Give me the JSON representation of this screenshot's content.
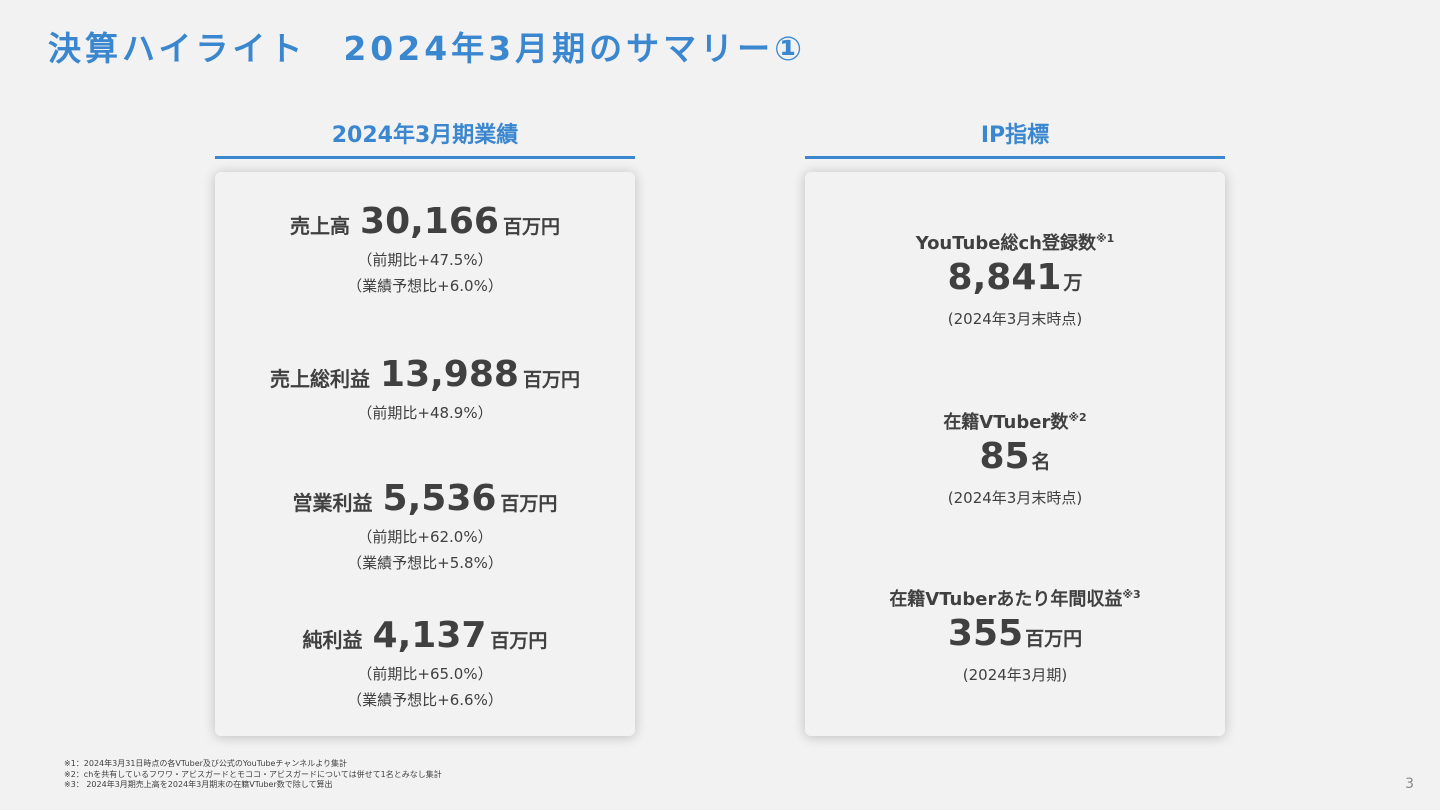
{
  "title": "決算ハイライト　2024年3月期のサマリー①",
  "colors": {
    "accent": "#3a87cf",
    "text": "#404040",
    "background": "#f2f2f2"
  },
  "left": {
    "header": "2024年3月期業績",
    "metrics": [
      {
        "label": "売上高",
        "value": "30,166",
        "unit": "百万円",
        "notes": [
          "（前期比+47.5%）",
          "（業績予想比+6.0%）"
        ]
      },
      {
        "label": "売上総利益",
        "value": "13,988",
        "unit": "百万円",
        "notes": [
          "（前期比+48.9%）"
        ]
      },
      {
        "label": "営業利益",
        "value": "5,536",
        "unit": "百万円",
        "notes": [
          "（前期比+62.0%）",
          "（業績予想比+5.8%）"
        ]
      },
      {
        "label": "純利益",
        "value": "4,137",
        "unit": "百万円",
        "notes": [
          "（前期比+65.0%）",
          "（業績予想比+6.6%）"
        ]
      }
    ]
  },
  "right": {
    "header": "IP指標",
    "metrics": [
      {
        "label": "YouTube総ch登録数",
        "ref": "※1",
        "value": "8,841",
        "unit": "万",
        "note": "(2024年3月末時点)"
      },
      {
        "label": "在籍VTuber数",
        "ref": "※2",
        "value": "85",
        "unit": "名",
        "note": "(2024年3月末時点)"
      },
      {
        "label": "在籍VTuberあたり年間収益",
        "ref": "※3",
        "value": "355",
        "unit": "百万円",
        "note": "(2024年3月期)"
      }
    ]
  },
  "footnotes": [
    "※1：2024年3月31日時点の各VTuber及び公式のYouTubeチャンネルより集計",
    "※2：chを共有しているフワワ・アビスガードとモココ・アビスガードについては併せて1名とみなし集計",
    "※3： 2024年3月期売上高を2024年3月期末の在籍VTuber数で除して算出"
  ],
  "page_number": "3"
}
